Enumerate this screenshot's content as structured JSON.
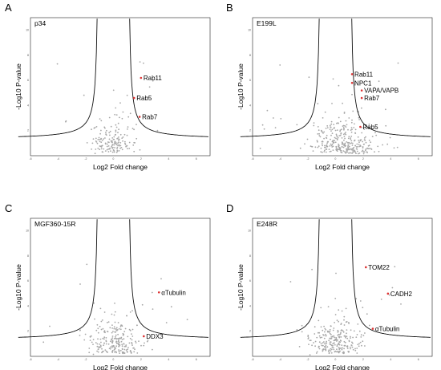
{
  "chart_data": [
    {
      "type": "scatter",
      "panel": "A",
      "title": "p34",
      "xlabel": "Log2  Fold change",
      "ylabel": "-Log10 P-value",
      "xlim": [
        -6,
        7
      ],
      "ylim": [
        0,
        11
      ],
      "xticks": [
        "-6",
        "-4",
        "-2",
        "0",
        "2",
        "4",
        "6"
      ],
      "yticks": [
        "2",
        "4",
        "6",
        "8",
        "10"
      ],
      "grid": false,
      "annotations": [
        {
          "label": "Rab11",
          "x": 2.0,
          "y": 6.2
        },
        {
          "label": "Rab5",
          "x": 1.5,
          "y": 4.6
        },
        {
          "label": "Rab7",
          "x": 1.9,
          "y": 3.1
        }
      ]
    },
    {
      "type": "scatter",
      "panel": "B",
      "title": "E199L",
      "xlabel": "Log2  Fold change",
      "ylabel": "-Log10 P-value",
      "xlim": [
        -6,
        7
      ],
      "ylim": [
        0,
        11
      ],
      "xticks": [
        "-6",
        "-4",
        "-2",
        "0",
        "2",
        "4",
        "6"
      ],
      "yticks": [
        "2",
        "4",
        "6",
        "8",
        "10"
      ],
      "grid": false,
      "annotations": [
        {
          "label": "Rab11",
          "x": 1.2,
          "y": 6.5
        },
        {
          "label": "NPC1",
          "x": 1.2,
          "y": 5.8
        },
        {
          "label": "VAPA/VAPB",
          "x": 1.9,
          "y": 5.2
        },
        {
          "label": "Rab7",
          "x": 1.9,
          "y": 4.6
        },
        {
          "label": "Rab5",
          "x": 1.8,
          "y": 2.3
        }
      ]
    },
    {
      "type": "scatter",
      "panel": "C",
      "title": "MGF360-15R",
      "xlabel": "Log2  Fold change",
      "ylabel": "-Log10 P-value",
      "xlim": [
        -6,
        7
      ],
      "ylim": [
        0,
        11
      ],
      "xticks": [
        "-6",
        "-4",
        "-2",
        "0",
        "2",
        "4",
        "6"
      ],
      "yticks": [
        "2",
        "4",
        "6",
        "8",
        "10"
      ],
      "grid": false,
      "annotations": [
        {
          "label": "αTubulin",
          "x": 3.3,
          "y": 5.1
        },
        {
          "label": "DDX3",
          "x": 2.2,
          "y": 1.6
        }
      ]
    },
    {
      "type": "scatter",
      "panel": "D",
      "title": "E248R",
      "xlabel": "Log2  Fold change",
      "ylabel": "-Log10 P-value",
      "xlim": [
        -6,
        7
      ],
      "ylim": [
        0,
        11
      ],
      "xticks": [
        "-6",
        "-4",
        "-2",
        "0",
        "2",
        "4",
        "6"
      ],
      "yticks": [
        "2",
        "4",
        "6",
        "8",
        "10"
      ],
      "grid": false,
      "annotations": [
        {
          "label": "TOM22",
          "x": 2.2,
          "y": 7.1
        },
        {
          "label": "CADH2",
          "x": 3.8,
          "y": 5.0
        },
        {
          "label": "αTubulin",
          "x": 2.7,
          "y": 2.2
        }
      ]
    }
  ]
}
